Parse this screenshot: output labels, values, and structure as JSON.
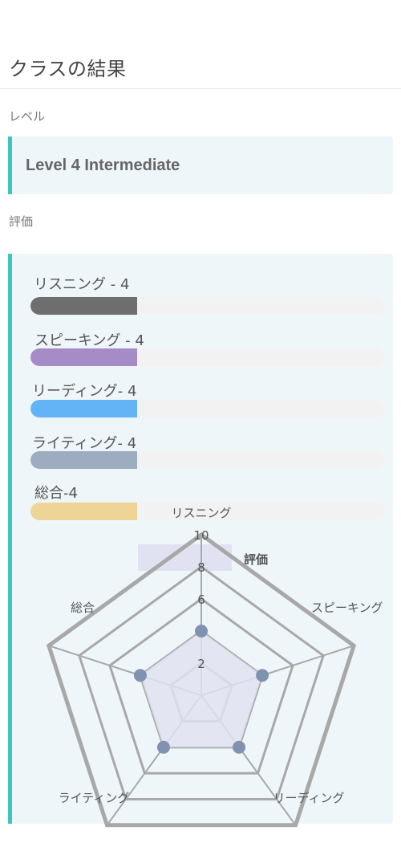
{
  "page": {
    "title": "クラスの結果"
  },
  "level_section": {
    "label": "レベル",
    "value": "Level 4 Intermediate"
  },
  "evaluation_section": {
    "label": "評価"
  },
  "skills": [
    {
      "label": "リスニング  - 4",
      "value": 4,
      "max": 10,
      "color": "#6e6e6e"
    },
    {
      "label": "スピーキング  - 4",
      "value": 4,
      "max": 10,
      "color": "#a58cc7"
    },
    {
      "label": "リーディング- 4",
      "value": 4,
      "max": 10,
      "color": "#62b4f6"
    },
    {
      "label": "ライティング- 4",
      "value": 4,
      "max": 10,
      "color": "#9eacc1"
    },
    {
      "label": "総合-4",
      "value": 4,
      "max": 10,
      "color": "#eed496"
    }
  ],
  "chart_data": {
    "type": "radar",
    "legend": {
      "label": "評価",
      "color": "#e1e2f1",
      "position": "top"
    },
    "axes": [
      "リスニング",
      "スピーキング",
      "リーディング",
      "ライティング",
      "総合"
    ],
    "series": [
      {
        "name": "評価",
        "values": [
          4,
          4,
          4,
          4,
          4
        ],
        "fill": "#e1e2f1",
        "point_color": "#7f93b1"
      }
    ],
    "range": [
      0,
      10
    ],
    "ticks": [
      "2",
      "",
      "6",
      "8",
      "10"
    ],
    "grid_color": "#a8a8a8"
  }
}
